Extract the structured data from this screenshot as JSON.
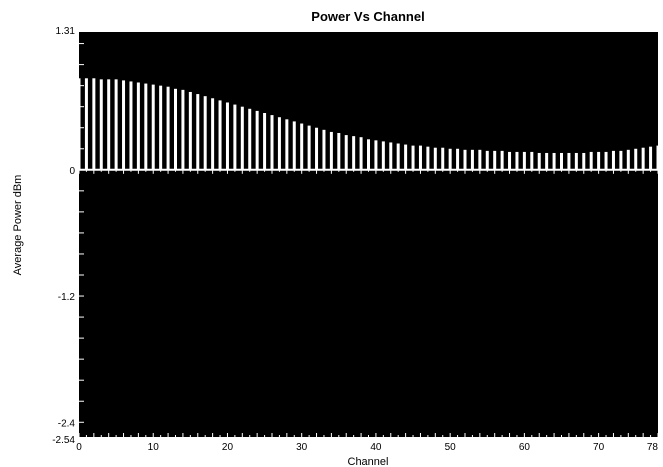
{
  "chart_data": {
    "type": "bar",
    "title": "Power Vs Channel",
    "xlabel": "Channel",
    "ylabel": "Average Power  dBm",
    "xlim": [
      0,
      78
    ],
    "ylim": [
      -2.54,
      1.31
    ],
    "x_ticks": [
      0,
      10,
      20,
      30,
      40,
      50,
      60,
      70,
      78
    ],
    "y_ticks": [
      1.31,
      0,
      -1.2,
      -2.4,
      -2.54
    ],
    "grid": false,
    "colors": {
      "plot_background": "#000000",
      "bars": "#ffffff",
      "axis": "#ffffff"
    },
    "channels": [
      0,
      1,
      2,
      3,
      4,
      5,
      6,
      7,
      8,
      9,
      10,
      11,
      12,
      13,
      14,
      15,
      16,
      17,
      18,
      19,
      20,
      21,
      22,
      23,
      24,
      25,
      26,
      27,
      28,
      29,
      30,
      31,
      32,
      33,
      34,
      35,
      36,
      37,
      38,
      39,
      40,
      41,
      42,
      43,
      44,
      45,
      46,
      47,
      48,
      49,
      50,
      51,
      52,
      53,
      54,
      55,
      56,
      57,
      58,
      59,
      60,
      61,
      62,
      63,
      64,
      65,
      66,
      67,
      68,
      69,
      70,
      71,
      72,
      73,
      74,
      75,
      76,
      77,
      78
    ],
    "values": [
      0.87,
      0.87,
      0.87,
      0.86,
      0.86,
      0.86,
      0.85,
      0.84,
      0.83,
      0.82,
      0.81,
      0.8,
      0.79,
      0.77,
      0.76,
      0.74,
      0.72,
      0.7,
      0.68,
      0.66,
      0.64,
      0.62,
      0.6,
      0.58,
      0.56,
      0.54,
      0.52,
      0.5,
      0.48,
      0.46,
      0.44,
      0.42,
      0.4,
      0.38,
      0.36,
      0.35,
      0.33,
      0.32,
      0.31,
      0.29,
      0.28,
      0.27,
      0.26,
      0.25,
      0.24,
      0.23,
      0.23,
      0.22,
      0.21,
      0.21,
      0.2,
      0.2,
      0.19,
      0.19,
      0.19,
      0.18,
      0.18,
      0.18,
      0.17,
      0.17,
      0.17,
      0.17,
      0.16,
      0.16,
      0.16,
      0.16,
      0.16,
      0.16,
      0.16,
      0.17,
      0.17,
      0.17,
      0.18,
      0.18,
      0.19,
      0.2,
      0.21,
      0.22,
      0.23
    ]
  }
}
